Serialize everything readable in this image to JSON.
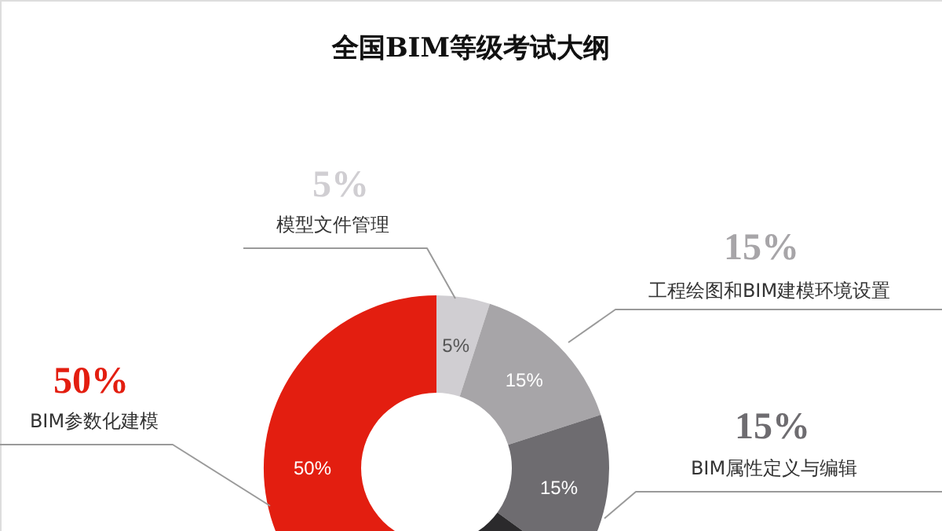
{
  "chart_data": {
    "type": "donut",
    "title": "全国BIM等级考试大纲",
    "categories": [
      "模型文件管理",
      "工程绘图和BIM建模环境设置",
      "BIM属性定义与编辑",
      null,
      "BIM参数化建模"
    ],
    "values": [
      5,
      15,
      15,
      15,
      50
    ],
    "value_labels": [
      "5%",
      "15%",
      "15%",
      null,
      "50%"
    ],
    "colors": [
      "#d0ced2",
      "#a7a5a8",
      "#6e6c70",
      "#2b2a2c",
      "#e31e10"
    ],
    "legend": false
  }
}
